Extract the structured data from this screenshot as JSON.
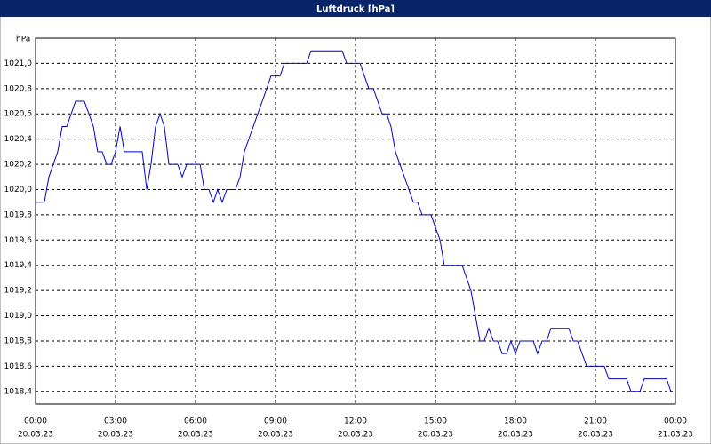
{
  "chart_data": {
    "type": "line",
    "title": "Luftdruck [hPa]",
    "y_label": "hPa",
    "x": [
      0,
      0.33,
      0.5,
      0.83,
      1.0,
      1.17,
      1.5,
      1.83,
      2.17,
      2.33,
      2.5,
      2.67,
      2.83,
      3.0,
      3.17,
      3.33,
      4.0,
      4.17,
      4.33,
      4.5,
      4.67,
      4.83,
      5.0,
      5.33,
      5.5,
      5.67,
      6.17,
      6.33,
      6.5,
      6.67,
      6.83,
      7.0,
      7.17,
      7.5,
      7.67,
      7.83,
      8.67,
      8.83,
      9.17,
      9.33,
      10.17,
      10.33,
      11.5,
      11.67,
      12.17,
      12.5,
      12.67,
      13.0,
      13.17,
      13.33,
      13.5,
      14.17,
      14.33,
      14.5,
      14.83,
      15.17,
      15.33,
      16.0,
      16.33,
      16.67,
      16.83,
      17.0,
      17.17,
      17.33,
      17.5,
      17.67,
      17.83,
      18.0,
      18.17,
      18.67,
      18.83,
      19.0,
      19.17,
      19.33,
      20.0,
      20.17,
      20.33,
      20.67,
      21.33,
      21.5,
      22.17,
      22.33,
      22.67,
      22.83,
      23.67,
      23.83
    ],
    "series": [
      {
        "name": "Luftdruck",
        "color": "#0000c8",
        "values": [
          1019.9,
          1019.9,
          1020.1,
          1020.3,
          1020.5,
          1020.5,
          1020.7,
          1020.7,
          1020.5,
          1020.3,
          1020.3,
          1020.2,
          1020.2,
          1020.3,
          1020.5,
          1020.3,
          1020.3,
          1020.0,
          1020.2,
          1020.5,
          1020.6,
          1020.5,
          1020.2,
          1020.2,
          1020.1,
          1020.2,
          1020.2,
          1020.0,
          1020.0,
          1019.9,
          1020.0,
          1019.9,
          1020.0,
          1020.0,
          1020.1,
          1020.3,
          1020.8,
          1020.9,
          1020.9,
          1021.0,
          1021.0,
          1021.1,
          1021.1,
          1021.0,
          1021.0,
          1020.8,
          1020.8,
          1020.6,
          1020.6,
          1020.5,
          1020.3,
          1019.9,
          1019.9,
          1019.8,
          1019.8,
          1019.6,
          1019.4,
          1019.4,
          1019.2,
          1018.8,
          1018.8,
          1018.9,
          1018.8,
          1018.8,
          1018.7,
          1018.7,
          1018.8,
          1018.7,
          1018.8,
          1018.8,
          1018.7,
          1018.8,
          1018.8,
          1018.9,
          1018.9,
          1018.8,
          1018.8,
          1018.6,
          1018.6,
          1018.5,
          1018.5,
          1018.4,
          1018.4,
          1018.5,
          1018.5,
          1018.4
        ]
      }
    ],
    "xlim": [
      0,
      24
    ],
    "xticks": [
      {
        "value": 0,
        "label": [
          "00:00",
          "20.03.23"
        ]
      },
      {
        "value": 3,
        "label": [
          "03:00",
          "20.03.23"
        ]
      },
      {
        "value": 6,
        "label": [
          "06:00",
          "20.03.23"
        ]
      },
      {
        "value": 9,
        "label": [
          "09:00",
          "20.03.23"
        ]
      },
      {
        "value": 12,
        "label": [
          "12:00",
          "20.03.23"
        ]
      },
      {
        "value": 15,
        "label": [
          "15:00",
          "20.03.23"
        ]
      },
      {
        "value": 18,
        "label": [
          "18:00",
          "20.03.23"
        ]
      },
      {
        "value": 21,
        "label": [
          "21:00",
          "20.03.23"
        ]
      },
      {
        "value": 24,
        "label": [
          "00:00",
          "21.03.23"
        ]
      }
    ],
    "ylim": [
      1018.3,
      1021.2
    ],
    "yticks": [
      {
        "value": 1018.4,
        "label": "1018,4"
      },
      {
        "value": 1018.6,
        "label": "1018,6"
      },
      {
        "value": 1018.8,
        "label": "1018,8"
      },
      {
        "value": 1019.0,
        "label": "1019,0"
      },
      {
        "value": 1019.2,
        "label": "1019,2"
      },
      {
        "value": 1019.4,
        "label": "1019,4"
      },
      {
        "value": 1019.6,
        "label": "1019,6"
      },
      {
        "value": 1019.8,
        "label": "1019,8"
      },
      {
        "value": 1020.0,
        "label": "1020,0"
      },
      {
        "value": 1020.2,
        "label": "1020,2"
      },
      {
        "value": 1020.4,
        "label": "1020,4"
      },
      {
        "value": 1020.6,
        "label": "1020,6"
      },
      {
        "value": 1020.8,
        "label": "1020,8"
      },
      {
        "value": 1021.0,
        "label": "1021,0"
      }
    ],
    "grid": true
  }
}
